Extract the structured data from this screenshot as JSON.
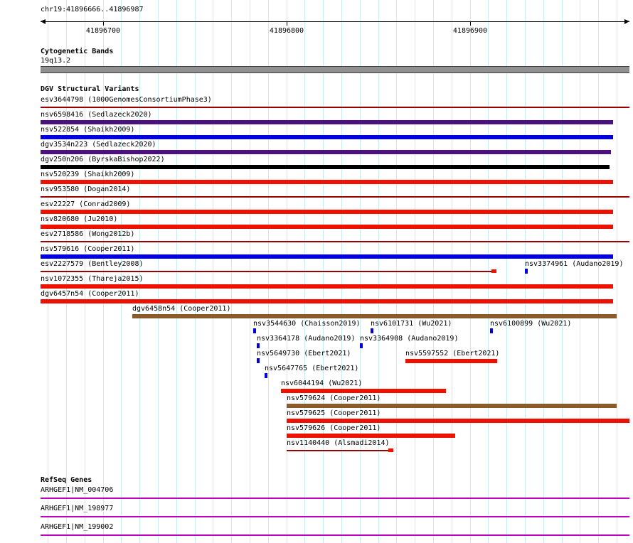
{
  "header": {
    "region_title": "chr19:41896666..41896987"
  },
  "palette": {
    "grid": "#c9ecec",
    "axis": "#000000",
    "darkred": "#990000",
    "red": "#ee1100",
    "blue": "#0000dd",
    "purple": "#4d1080",
    "black": "#000000",
    "brown": "#8b5a2b",
    "magenta": "#c000c0",
    "cytoband_fill": "#909090",
    "cytoband_border": "#404040"
  },
  "sections": {
    "cytobands": {
      "heading": "Cytogenetic Bands",
      "band_label": "19q13.2"
    },
    "dgv": {
      "heading": "DGV Structural Variants"
    },
    "refseq": {
      "heading": "RefSeq Genes"
    }
  },
  "chart_data": {
    "type": "genome-browser-tracks",
    "title": "chr19:41896666..41896987",
    "region": {
      "chrom": "chr19",
      "start": 41896666,
      "end": 41896987,
      "length_bp": 321
    },
    "axis_ticks": [
      41896700,
      41896800,
      41896900
    ],
    "grid_step_bp": 10,
    "cytoband": {
      "name": "19q13.2",
      "start": 41896666,
      "end": 41896987
    },
    "variant_rows": [
      [
        {
          "label": "esv3644798 (1000GenomesConsortiumPhase3)",
          "style": "line",
          "color": "darkred",
          "start": 41896666,
          "end": 41896987
        }
      ],
      [
        {
          "label": "nsv6598416 (Sedlazeck2020)",
          "style": "bar",
          "color": "purple",
          "start": 41896666,
          "end": 41896978
        }
      ],
      [
        {
          "label": "nsv522854 (Shaikh2009)",
          "style": "bar",
          "color": "blue",
          "start": 41896666,
          "end": 41896978
        }
      ],
      [
        {
          "label": "dgv3534n223 (Sedlazeck2020)",
          "style": "bar",
          "color": "purple",
          "start": 41896666,
          "end": 41896977
        }
      ],
      [
        {
          "label": "dgv250n206 (ByrskaBishop2022)",
          "style": "bar",
          "color": "black",
          "start": 41896666,
          "end": 41896976
        }
      ],
      [
        {
          "label": "nsv520239 (Shaikh2009)",
          "style": "bar",
          "color": "red",
          "start": 41896666,
          "end": 41896978
        }
      ],
      [
        {
          "label": "nsv953580 (Dogan2014)",
          "style": "line",
          "color": "darkred",
          "start": 41896666,
          "end": 41896987
        }
      ],
      [
        {
          "label": "esv22227 (Conrad2009)",
          "style": "bar",
          "color": "red",
          "start": 41896666,
          "end": 41896978
        }
      ],
      [
        {
          "label": "nsv820680 (Ju2010)",
          "style": "bar",
          "color": "red",
          "start": 41896666,
          "end": 41896978
        }
      ],
      [
        {
          "label": "esv2718586 (Wong2012b)",
          "style": "line",
          "color": "darkred",
          "start": 41896666,
          "end": 41896987
        }
      ],
      [
        {
          "label": "nsv579616 (Cooper2011)",
          "style": "bar",
          "color": "blue",
          "start": 41896666,
          "end": 41896978
        }
      ],
      [
        {
          "label": "esv2227579 (Bentley2008)",
          "style": "line-endmark",
          "color": "darkred",
          "start": 41896666,
          "end": 41896914
        },
        {
          "label": "nsv3374961 (Audano2019)",
          "style": "tick",
          "color": "blue",
          "start": 41896930,
          "end": 41896930
        }
      ],
      [
        {
          "label": "nsv1072355 (Thareja2015)",
          "style": "bar",
          "color": "red",
          "start": 41896666,
          "end": 41896978
        }
      ],
      [
        {
          "label": "dgv6457n54 (Cooper2011)",
          "style": "bar",
          "color": "red",
          "start": 41896666,
          "end": 41896978
        }
      ],
      [
        {
          "label": "dgv6458n54 (Cooper2011)",
          "style": "bar",
          "color": "brown",
          "start": 41896716,
          "end": 41896980
        }
      ],
      [
        {
          "label": "nsv3544630 (Chaisson2019)",
          "style": "tick",
          "color": "blue",
          "start": 41896782,
          "end": 41896782
        },
        {
          "label": "nsv6101731 (Wu2021)",
          "style": "tick",
          "color": "blue",
          "start": 41896846,
          "end": 41896846
        },
        {
          "label": "nsv6100899 (Wu2021)",
          "style": "tick",
          "color": "blue",
          "start": 41896911,
          "end": 41896911
        }
      ],
      [
        {
          "label": "nsv3364178 (Audano2019)",
          "style": "tick",
          "color": "blue",
          "start": 41896784,
          "end": 41896784
        },
        {
          "label": "nsv3364908 (Audano2019)",
          "style": "tick",
          "color": "blue",
          "start": 41896840,
          "end": 41896840
        }
      ],
      [
        {
          "label": "nsv5649730 (Ebert2021)",
          "style": "tick",
          "color": "blue",
          "start": 41896784,
          "end": 41896784
        },
        {
          "label": "nsv5597552 (Ebert2021)",
          "style": "bar",
          "color": "red",
          "start": 41896865,
          "end": 41896915
        }
      ],
      [
        {
          "label": "nsv5647765 (Ebert2021)",
          "style": "tick",
          "color": "blue",
          "start": 41896788,
          "end": 41896788
        }
      ],
      [
        {
          "label": "nsv6044194 (Wu2021)",
          "style": "bar",
          "color": "red",
          "start": 41896797,
          "end": 41896887
        }
      ],
      [
        {
          "label": "nsv579624 (Cooper2011)",
          "style": "bar",
          "color": "brown",
          "start": 41896800,
          "end": 41896980
        }
      ],
      [
        {
          "label": "nsv579625 (Cooper2011)",
          "style": "bar",
          "color": "red",
          "start": 41896800,
          "end": 41896987
        }
      ],
      [
        {
          "label": "nsv579626 (Cooper2011)",
          "style": "bar",
          "color": "red",
          "start": 41896800,
          "end": 41896892
        }
      ],
      [
        {
          "label": "nsv1140440 (Alsmadi2014)",
          "style": "line-endmark",
          "color": "darkred",
          "start": 41896800,
          "end": 41896858
        }
      ]
    ],
    "genes": [
      {
        "label": "ARHGEF1|NM_004706",
        "color": "magenta",
        "start": 41896666,
        "end": 41896987
      },
      {
        "label": "ARHGEF1|NM_198977",
        "color": "magenta",
        "start": 41896666,
        "end": 41896987
      },
      {
        "label": "ARHGEF1|NM_199002",
        "color": "magenta",
        "start": 41896666,
        "end": 41896987
      }
    ]
  }
}
